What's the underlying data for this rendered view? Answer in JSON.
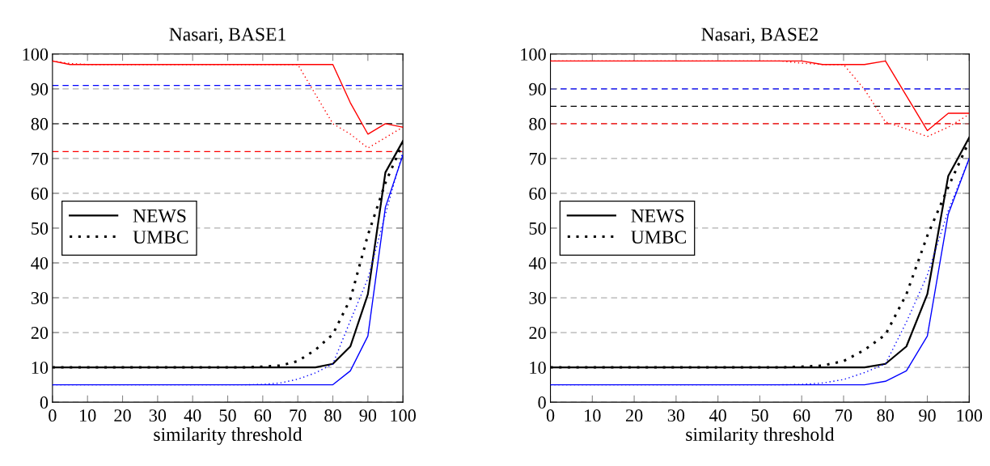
{
  "chart_data": [
    {
      "type": "line",
      "title": "Nasari, BASE1",
      "xlabel": "similarity threshold",
      "x": [
        0,
        5,
        10,
        15,
        20,
        25,
        30,
        35,
        40,
        45,
        50,
        55,
        60,
        65,
        70,
        75,
        80,
        85,
        90,
        95,
        100
      ],
      "xlim": [
        0,
        100
      ],
      "xticks": [
        0,
        10,
        20,
        30,
        40,
        50,
        60,
        70,
        80,
        90,
        100
      ],
      "ylim": [
        0,
        100
      ],
      "yticks": [
        0,
        10,
        20,
        30,
        40,
        50,
        60,
        70,
        80,
        90,
        100
      ],
      "grid": "y",
      "legend": "left",
      "series": [
        {
          "name": "NEWS",
          "color": "#000000",
          "line_style": "solid",
          "values": [
            10,
            10,
            10,
            10,
            10,
            10,
            10,
            10,
            10,
            10,
            10,
            10,
            10,
            10,
            10,
            10,
            11,
            16,
            31,
            66,
            75
          ]
        },
        {
          "name": "UMBC",
          "color": "#000000",
          "line_style": "dotted",
          "values": [
            10,
            10,
            10,
            10,
            10,
            10,
            10,
            10,
            10,
            10,
            10,
            10,
            10.2,
            10.5,
            11.8,
            15,
            19.5,
            29.6,
            48,
            63,
            74.5
          ]
        },
        {
          "color": "#0000ff",
          "line_style": "solid",
          "values": [
            5,
            5,
            5,
            5,
            5,
            5,
            5,
            5,
            5,
            5,
            5,
            5,
            5,
            5,
            5,
            5,
            5,
            9,
            19,
            56,
            71
          ]
        },
        {
          "color": "#0000ff",
          "line_style": "dotted",
          "values": [
            5,
            5,
            5,
            5,
            5,
            5,
            5,
            5,
            5,
            5,
            5,
            5,
            5.1,
            5.5,
            6.6,
            8.4,
            11,
            23.4,
            35.5,
            54,
            72
          ]
        },
        {
          "color": "#ff0000",
          "line_style": "solid",
          "values": [
            98,
            97,
            97,
            97,
            97,
            97,
            97,
            97,
            97,
            97,
            97,
            97,
            97,
            97,
            97,
            97,
            97,
            86,
            77,
            80,
            79
          ]
        },
        {
          "color": "#ff0000",
          "line_style": "dotted",
          "values": [
            98,
            97.3,
            97,
            97,
            97,
            97,
            97,
            97,
            97,
            97,
            97,
            97,
            97,
            97,
            97,
            88.5,
            80,
            77,
            73,
            76,
            79
          ]
        }
      ],
      "ref_lines": [
        {
          "axis": "y",
          "value": 91,
          "color": "#0000ff",
          "line_style": "dashed"
        },
        {
          "axis": "y",
          "value": 80,
          "color": "#000000",
          "line_style": "dashed"
        },
        {
          "axis": "y",
          "value": 72,
          "color": "#ff0000",
          "line_style": "dashed"
        }
      ]
    },
    {
      "type": "line",
      "title": "Nasari, BASE2",
      "xlabel": "similarity threshold",
      "x": [
        0,
        5,
        10,
        15,
        20,
        25,
        30,
        35,
        40,
        45,
        50,
        55,
        60,
        65,
        70,
        75,
        80,
        85,
        90,
        95,
        100
      ],
      "xlim": [
        0,
        100
      ],
      "xticks": [
        0,
        10,
        20,
        30,
        40,
        50,
        60,
        70,
        80,
        90,
        100
      ],
      "ylim": [
        0,
        100
      ],
      "yticks": [
        0,
        10,
        20,
        30,
        40,
        50,
        60,
        70,
        80,
        90,
        100
      ],
      "grid": "y",
      "legend": "left",
      "series": [
        {
          "name": "NEWS",
          "color": "#000000",
          "line_style": "solid",
          "values": [
            10,
            10,
            10,
            10,
            10,
            10,
            10,
            10,
            10,
            10,
            10,
            10,
            10,
            10,
            10,
            10,
            11,
            16,
            31,
            65,
            76
          ]
        },
        {
          "name": "UMBC",
          "color": "#000000",
          "line_style": "dotted",
          "values": [
            10,
            10,
            10,
            10,
            10,
            10,
            10,
            10,
            10,
            10,
            10,
            10,
            10.2,
            10.5,
            11.8,
            15,
            19.4,
            31,
            47.8,
            61.8,
            75
          ]
        },
        {
          "color": "#0000ff",
          "line_style": "solid",
          "values": [
            5,
            5,
            5,
            5,
            5,
            5,
            5,
            5,
            5,
            5,
            5,
            5,
            5,
            5,
            5,
            5,
            6,
            9,
            19,
            54,
            70
          ]
        },
        {
          "color": "#0000ff",
          "line_style": "dotted",
          "values": [
            5,
            5,
            5,
            5,
            5,
            5,
            5,
            5,
            5,
            5,
            5,
            5,
            5.1,
            5.5,
            6.5,
            8.5,
            11,
            23,
            36.5,
            55,
            70
          ]
        },
        {
          "color": "#ff0000",
          "line_style": "solid",
          "values": [
            98,
            98,
            98,
            98,
            98,
            98,
            98,
            98,
            98,
            98,
            98,
            98,
            98,
            97,
            97,
            97,
            98,
            88,
            78,
            83,
            83
          ]
        },
        {
          "color": "#ff0000",
          "line_style": "dotted",
          "values": [
            98,
            98,
            98,
            98,
            98,
            98,
            98,
            98,
            98,
            98,
            98,
            98,
            97.4,
            97,
            97,
            89.8,
            80.5,
            78.5,
            76.3,
            79,
            82.7
          ]
        }
      ],
      "ref_lines": [
        {
          "axis": "y",
          "value": 90,
          "color": "#0000ff",
          "line_style": "dashed"
        },
        {
          "axis": "y",
          "value": 85,
          "color": "#000000",
          "line_style": "dashed"
        },
        {
          "axis": "y",
          "value": 80,
          "color": "#ff0000",
          "line_style": "dashed"
        }
      ]
    }
  ]
}
